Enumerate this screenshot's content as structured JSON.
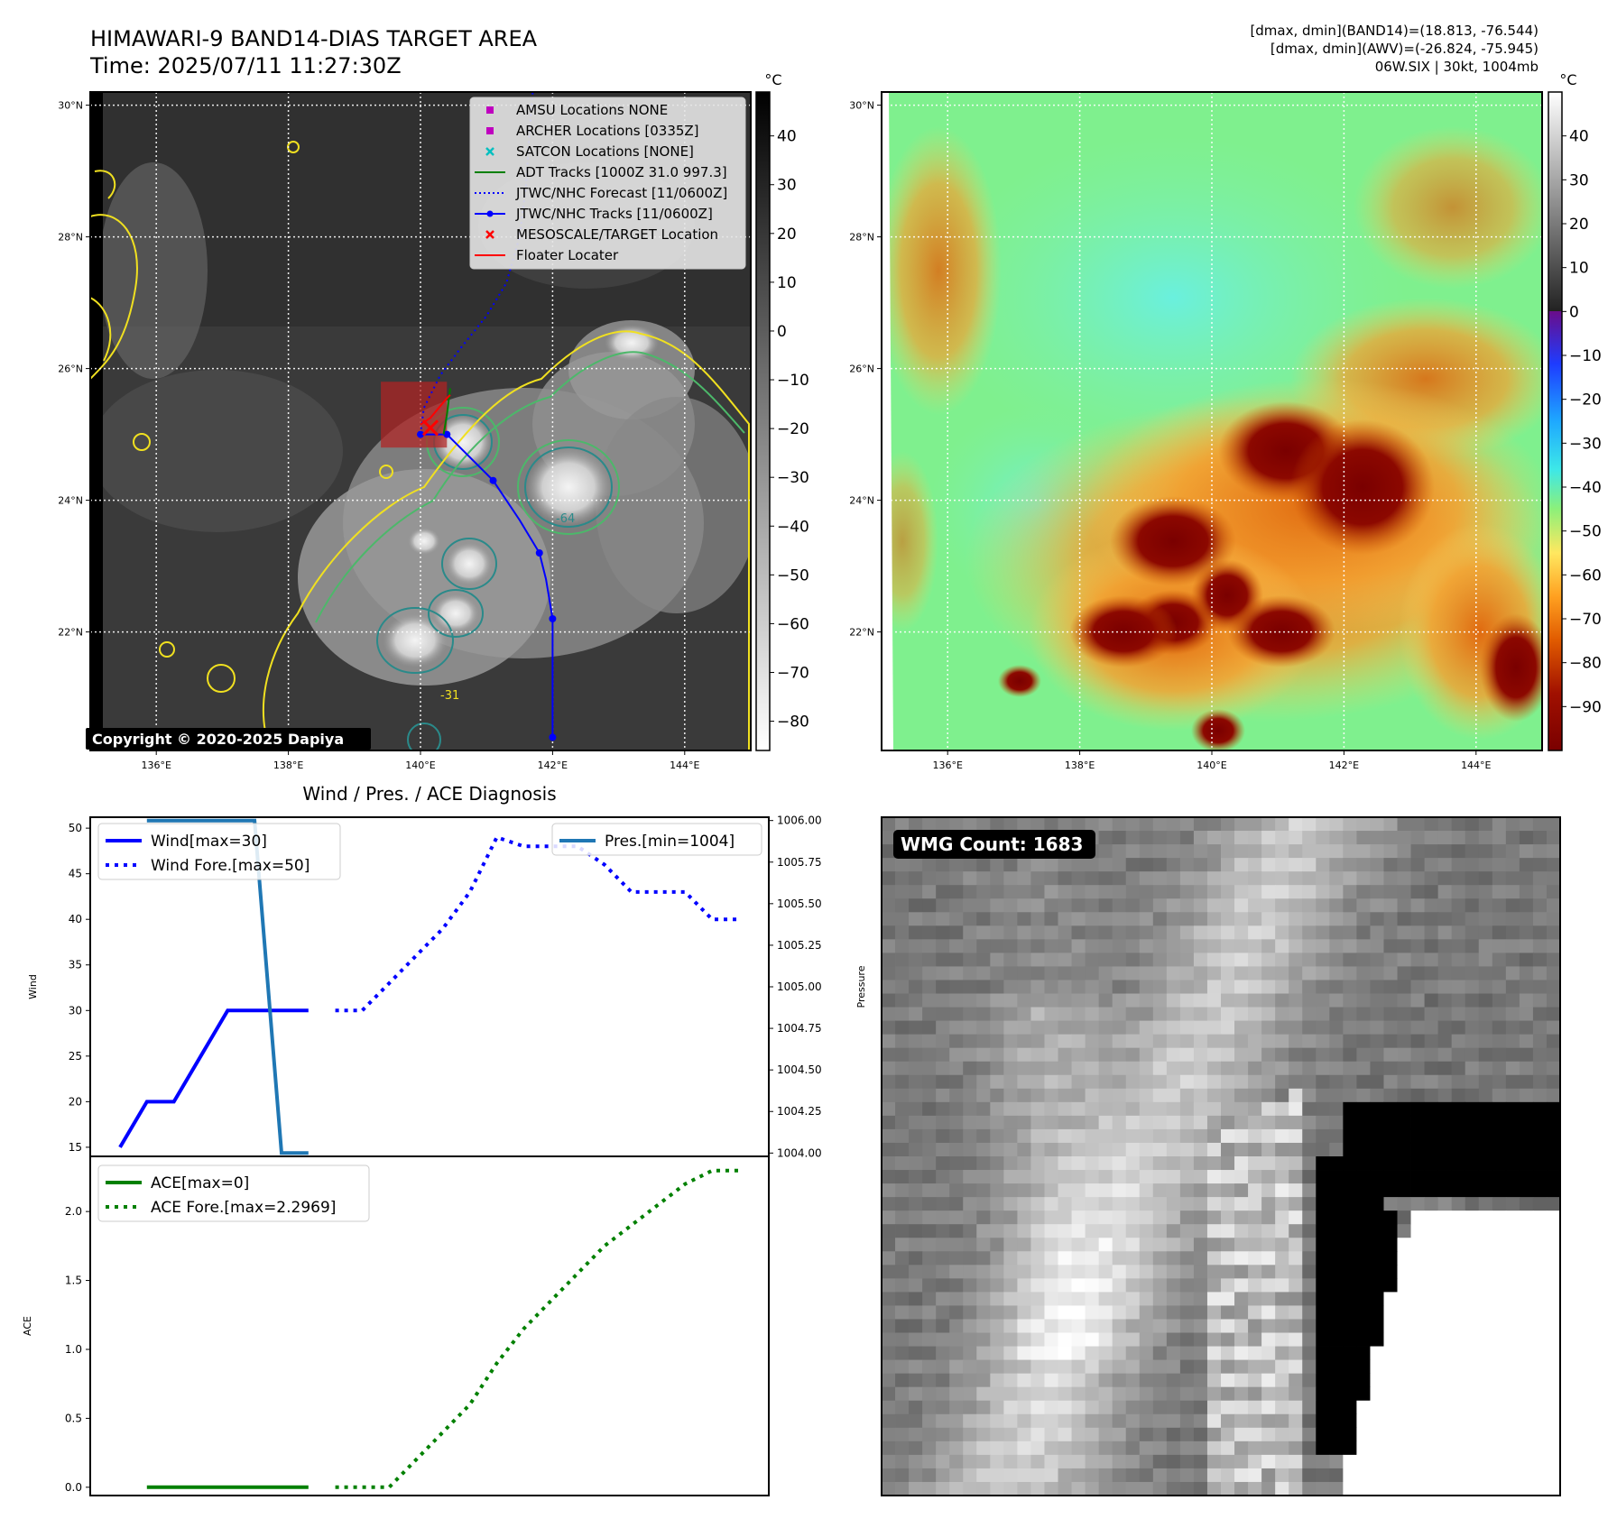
{
  "header": {
    "title_line1": "HIMAWARI-9 BAND14-DIAS TARGET AREA",
    "title_line2": "Time: 2025/07/11 11:27:30Z",
    "info_line1": "[dmax, dmin](BAND14)=(18.813, -76.544)",
    "info_line2": "[dmax, dmin](AWV)=(-26.824, -75.945)",
    "info_line3": "06W.SIX | 30kt, 1004mb"
  },
  "colors": {
    "wind": "#0000ff",
    "pressure": "#1f77b4",
    "ace": "#008000",
    "forecast_track": "#0000ff",
    "adt_track": "#008000",
    "target_marker": "#ff0000",
    "floater_box": "#b22222",
    "contour_yellow": "#f0e020",
    "contour_green": "#4cb86a",
    "contour_teal": "#2a8a8a"
  },
  "maps": {
    "lon_ticks": [
      "136°E",
      "138°E",
      "140°E",
      "142°E",
      "144°E"
    ],
    "lat_ticks": [
      "30°N",
      "28°N",
      "26°N",
      "24°N",
      "22°N"
    ],
    "lon_range": [
      135.0,
      145.0
    ],
    "lat_range": [
      20.2,
      30.2
    ],
    "gray_colorbar": {
      "unit": "°C",
      "ticks": [
        "40",
        "30",
        "20",
        "10",
        "0",
        "−10",
        "−20",
        "−30",
        "−40",
        "−50",
        "−60",
        "−70",
        "−80"
      ],
      "range": [
        -86,
        49
      ]
    },
    "color_colorbar": {
      "unit": "°C",
      "ticks": [
        "40",
        "30",
        "20",
        "10",
        "0",
        "−10",
        "−20",
        "−30",
        "−40",
        "−50",
        "−60",
        "−70",
        "−80",
        "−90"
      ],
      "range": [
        -100,
        50
      ]
    },
    "copyright": "Copyright © 2020-2025 Dapiya",
    "contour_label": "-31",
    "contour_label2": "-64",
    "legend": [
      {
        "label": "AMSU Locations NONE",
        "symbol": "square",
        "color": "#bf00bf"
      },
      {
        "label": "ARCHER Locations [0335Z]",
        "symbol": "square",
        "color": "#bf00bf"
      },
      {
        "label": "SATCON Locations [NONE]",
        "symbol": "x",
        "color": "#00bfbf"
      },
      {
        "label": "ADT Tracks [1000Z 31.0 997.3]",
        "symbol": "line",
        "color": "#008000"
      },
      {
        "label": "JTWC/NHC Forecast [11/0600Z]",
        "symbol": "dotted",
        "color": "#0000ff"
      },
      {
        "label": "JTWC/NHC Tracks [11/0600Z]",
        "symbol": "line-dot",
        "color": "#0000ff"
      },
      {
        "label": "MESOSCALE/TARGET Location",
        "symbol": "x",
        "color": "#ff0000"
      },
      {
        "label": "Floater Locater",
        "symbol": "line",
        "color": "#ff0000"
      }
    ],
    "jtwc_track": [
      [
        142.0,
        20.4
      ],
      [
        142.0,
        22.2
      ],
      [
        141.9,
        22.8
      ],
      [
        141.8,
        23.2
      ],
      [
        141.5,
        23.7
      ],
      [
        141.1,
        24.3
      ],
      [
        140.8,
        24.6
      ],
      [
        140.4,
        25.0
      ],
      [
        140.0,
        25.0
      ]
    ],
    "jtwc_track_points": [
      [
        142.0,
        20.4
      ],
      [
        142.0,
        22.2
      ],
      [
        141.8,
        23.2
      ],
      [
        141.1,
        24.3
      ],
      [
        140.4,
        25.0
      ],
      [
        140.0,
        25.0
      ]
    ],
    "jtwc_forecast": [
      [
        140.0,
        25.0
      ],
      [
        140.05,
        25.4
      ],
      [
        140.3,
        25.9
      ],
      [
        140.6,
        26.3
      ],
      [
        141.0,
        26.8
      ],
      [
        141.3,
        27.3
      ],
      [
        141.5,
        28.0
      ],
      [
        141.6,
        28.8
      ],
      [
        141.65,
        29.6
      ],
      [
        141.7,
        30.2
      ]
    ],
    "adt_track": [
      [
        140.35,
        25.0
      ],
      [
        140.4,
        25.3
      ],
      [
        140.45,
        25.7
      ]
    ],
    "target_location": [
      140.15,
      25.1
    ],
    "floater_box": [
      [
        139.4,
        24.8
      ],
      [
        140.4,
        25.8
      ]
    ],
    "floater_locater": [
      [
        140.0,
        25.15
      ],
      [
        140.15,
        25.25
      ],
      [
        140.4,
        25.55
      ],
      [
        140.45,
        25.6
      ]
    ]
  },
  "diagnosis": {
    "title": "Wind / Pres. / ACE Diagnosis"
  },
  "wmg": {
    "badge": "WMG Count: 1683"
  },
  "chart_data": [
    {
      "type": "line",
      "title": "Wind / Pres. / ACE Diagnosis",
      "ylabel": "Wind",
      "ylim": [
        14,
        51.2
      ],
      "y_ticks": [
        15,
        20,
        25,
        30,
        35,
        40,
        45,
        50
      ],
      "y2label": "Pressure",
      "y2lim": [
        1003.98,
        1006.02
      ],
      "y2_ticks": [
        "1004.00",
        "1004.25",
        "1004.50",
        "1004.75",
        "1005.00",
        "1005.25",
        "1005.50",
        "1005.75",
        "1006.00"
      ],
      "x_count": 24,
      "series": [
        {
          "name": "Wind[max=30]",
          "axis": "left",
          "style": "solid",
          "x": [
            0,
            1,
            2,
            3,
            4,
            5,
            6,
            7
          ],
          "values": [
            15,
            20,
            20,
            25,
            30,
            30,
            30,
            30
          ]
        },
        {
          "name": "Wind Fore.[max=50]",
          "axis": "left",
          "style": "dotted",
          "x": [
            8,
            9,
            10,
            11,
            12,
            13,
            14,
            15,
            16,
            17,
            18,
            19,
            20,
            21,
            22,
            23
          ],
          "values": [
            30,
            30,
            33,
            36,
            39,
            43,
            49,
            48,
            48,
            48,
            46,
            43,
            43,
            43,
            40,
            40
          ]
        },
        {
          "name": "Pres.[min=1004]",
          "axis": "right",
          "style": "solid",
          "x": [
            1,
            2,
            3,
            4,
            5,
            6,
            7
          ],
          "values": [
            1006,
            1006,
            1006,
            1006,
            1006,
            1004,
            1004
          ]
        }
      ]
    },
    {
      "type": "line",
      "ylabel": "ACE",
      "ylim": [
        -0.06,
        2.4
      ],
      "y_ticks": [
        "0.0",
        "0.5",
        "1.0",
        "1.5",
        "2.0"
      ],
      "x_count": 24,
      "series": [
        {
          "name": "ACE[max=0]",
          "style": "solid",
          "x": [
            1,
            2,
            3,
            4,
            5,
            6,
            7
          ],
          "values": [
            0,
            0,
            0,
            0,
            0,
            0,
            0
          ]
        },
        {
          "name": "ACE Fore.[max=2.2969]",
          "style": "dotted",
          "x": [
            8,
            9,
            10,
            11,
            12,
            13,
            14,
            15,
            16,
            17,
            18,
            19,
            20,
            21,
            22,
            23
          ],
          "values": [
            0,
            0,
            0,
            0.2,
            0.4,
            0.6,
            0.9,
            1.15,
            1.35,
            1.55,
            1.75,
            1.9,
            2.05,
            2.2,
            2.2969,
            2.2969
          ]
        }
      ]
    }
  ]
}
